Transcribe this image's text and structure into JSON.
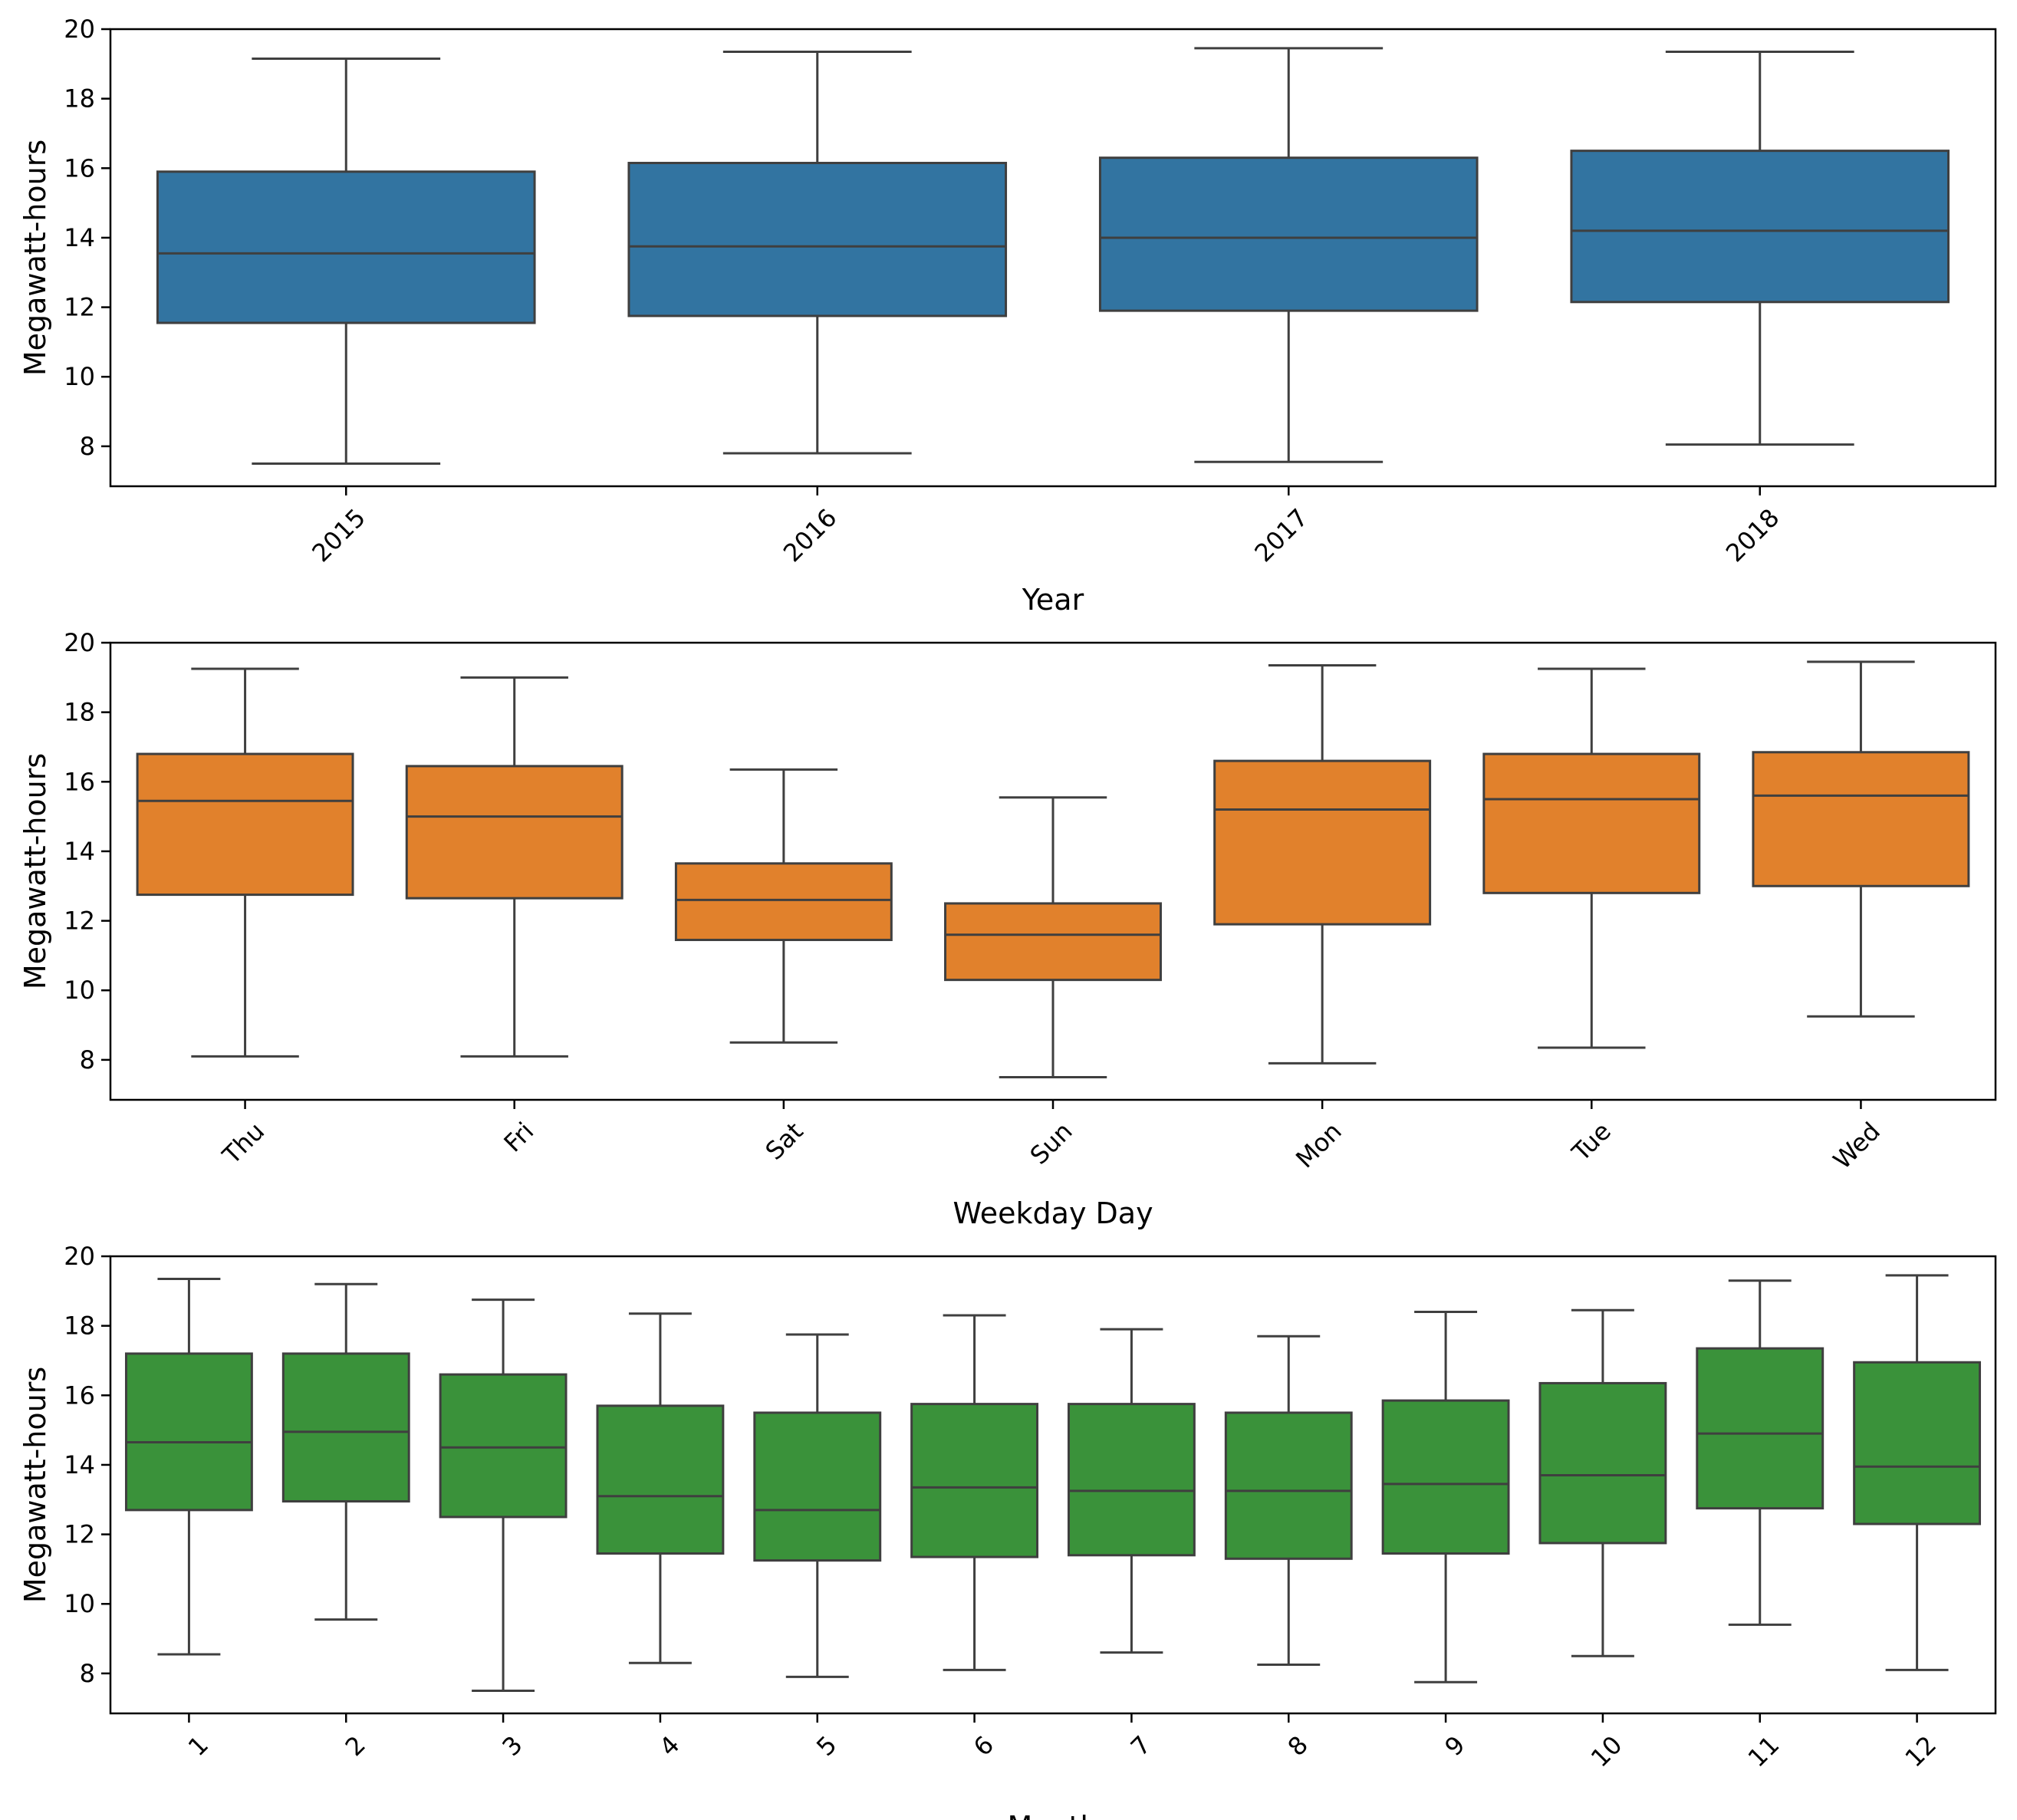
{
  "chart_data": [
    {
      "type": "box",
      "title": "",
      "xlabel": "Year",
      "ylabel": "Megawatt-hours",
      "ylim": [
        6.85,
        20.0
      ],
      "yticks": [
        8,
        10,
        12,
        14,
        16,
        18,
        20
      ],
      "color": "#3274a1",
      "categories": [
        "2015",
        "2016",
        "2017",
        "2018"
      ],
      "boxes": [
        {
          "whisker_low": 7.5,
          "q1": 11.55,
          "median": 13.55,
          "q3": 15.9,
          "whisker_high": 19.15
        },
        {
          "whisker_low": 7.8,
          "q1": 11.75,
          "median": 13.75,
          "q3": 16.15,
          "whisker_high": 19.35
        },
        {
          "whisker_low": 7.55,
          "q1": 11.9,
          "median": 14.0,
          "q3": 16.3,
          "whisker_high": 19.45
        },
        {
          "whisker_low": 8.05,
          "q1": 12.15,
          "median": 14.2,
          "q3": 16.5,
          "whisker_high": 19.35
        }
      ]
    },
    {
      "type": "box",
      "title": "",
      "xlabel": "Weekday Day",
      "ylabel": "Megawatt-hours",
      "ylim": [
        6.85,
        20.0
      ],
      "yticks": [
        8,
        10,
        12,
        14,
        16,
        18,
        20
      ],
      "color": "#e1812c",
      "categories": [
        "Thu",
        "Fri",
        "Sat",
        "Sun",
        "Mon",
        "Tue",
        "Wed"
      ],
      "boxes": [
        {
          "whisker_low": 8.1,
          "q1": 12.75,
          "median": 15.45,
          "q3": 16.8,
          "whisker_high": 19.25
        },
        {
          "whisker_low": 8.1,
          "q1": 12.65,
          "median": 15.0,
          "q3": 16.45,
          "whisker_high": 19.0
        },
        {
          "whisker_low": 8.5,
          "q1": 11.45,
          "median": 12.6,
          "q3": 13.65,
          "whisker_high": 16.35
        },
        {
          "whisker_low": 7.5,
          "q1": 10.3,
          "median": 11.6,
          "q3": 12.5,
          "whisker_high": 15.55
        },
        {
          "whisker_low": 7.9,
          "q1": 11.9,
          "median": 15.2,
          "q3": 16.6,
          "whisker_high": 19.35
        },
        {
          "whisker_low": 8.35,
          "q1": 12.8,
          "median": 15.5,
          "q3": 16.8,
          "whisker_high": 19.25
        },
        {
          "whisker_low": 9.25,
          "q1": 13.0,
          "median": 15.6,
          "q3": 16.85,
          "whisker_high": 19.45
        }
      ]
    },
    {
      "type": "box",
      "title": "",
      "xlabel": "Month",
      "ylabel": "Megawatt-hours",
      "ylim": [
        6.85,
        20.0
      ],
      "yticks": [
        8,
        10,
        12,
        14,
        16,
        18,
        20
      ],
      "color": "#3a923a",
      "categories": [
        "1",
        "2",
        "3",
        "4",
        "5",
        "6",
        "7",
        "8",
        "9",
        "10",
        "11",
        "12"
      ],
      "boxes": [
        {
          "whisker_low": 8.55,
          "q1": 12.7,
          "median": 14.65,
          "q3": 17.2,
          "whisker_high": 19.35
        },
        {
          "whisker_low": 9.55,
          "q1": 12.95,
          "median": 14.95,
          "q3": 17.2,
          "whisker_high": 19.2
        },
        {
          "whisker_low": 7.5,
          "q1": 12.5,
          "median": 14.5,
          "q3": 16.6,
          "whisker_high": 18.75
        },
        {
          "whisker_low": 8.3,
          "q1": 11.45,
          "median": 13.1,
          "q3": 15.7,
          "whisker_high": 18.35
        },
        {
          "whisker_low": 7.9,
          "q1": 11.25,
          "median": 12.7,
          "q3": 15.5,
          "whisker_high": 17.75
        },
        {
          "whisker_low": 8.1,
          "q1": 11.35,
          "median": 13.35,
          "q3": 15.75,
          "whisker_high": 18.3
        },
        {
          "whisker_low": 8.6,
          "q1": 11.4,
          "median": 13.25,
          "q3": 15.75,
          "whisker_high": 17.9
        },
        {
          "whisker_low": 8.25,
          "q1": 11.3,
          "median": 13.25,
          "q3": 15.5,
          "whisker_high": 17.7
        },
        {
          "whisker_low": 7.75,
          "q1": 11.45,
          "median": 13.45,
          "q3": 15.85,
          "whisker_high": 18.4
        },
        {
          "whisker_low": 8.5,
          "q1": 11.75,
          "median": 13.7,
          "q3": 16.35,
          "whisker_high": 18.45
        },
        {
          "whisker_low": 9.4,
          "q1": 12.75,
          "median": 14.9,
          "q3": 17.35,
          "whisker_high": 19.3
        },
        {
          "whisker_low": 8.1,
          "q1": 12.3,
          "median": 13.95,
          "q3": 16.95,
          "whisker_high": 19.45
        }
      ]
    }
  ]
}
